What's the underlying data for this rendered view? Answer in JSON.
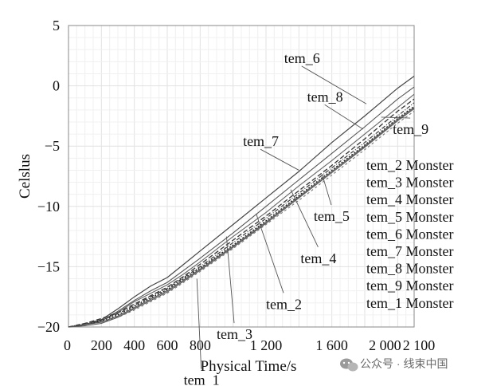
{
  "watermark": "公众号 · 线束中国",
  "chart_data": {
    "type": "line",
    "title": "",
    "xlabel": "Physical Time/s",
    "ylabel": "Celslus",
    "xlim": [
      0,
      2100
    ],
    "ylim": [
      -20,
      5
    ],
    "grid": true,
    "x_ticks": [
      0,
      200,
      400,
      600,
      800,
      1200,
      1600,
      2000,
      2100
    ],
    "x_tick_labels": [
      "0",
      "200",
      "400",
      "600",
      "800",
      "1 200",
      "1 600",
      "2 000",
      "2 100"
    ],
    "y_ticks": [
      5,
      0,
      -5,
      -10,
      -15,
      -20
    ],
    "y_tick_labels": [
      "5",
      "0",
      "−5",
      "−10",
      "−15",
      "−20"
    ],
    "legend": {
      "position": "right",
      "entries": [
        "tem_2 Monster",
        "tem_3 Monster",
        "tem_4 Monster",
        "tem_5 Monster",
        "tem_6 Monster",
        "tem_7 Monster",
        "tem_8 Monster",
        "tem_9 Monster",
        "tem_1 Monster"
      ]
    },
    "series": [
      {
        "name": "tem_6",
        "color": "#444444",
        "dash": "none",
        "width": 1.2,
        "x": [
          0,
          100,
          200,
          300,
          400,
          500,
          600,
          700,
          800,
          1000,
          1200,
          1400,
          1600,
          1800,
          2000,
          2100
        ],
        "y": [
          -20,
          -19.8,
          -19.4,
          -18.5,
          -17.5,
          -16.6,
          -15.9,
          -14.8,
          -13.7,
          -11.5,
          -9.3,
          -7.1,
          -4.7,
          -2.5,
          -0.2,
          0.8
        ]
      },
      {
        "name": "tem_8",
        "color": "#555555",
        "dash": "none",
        "width": 1.1,
        "x": [
          0,
          100,
          200,
          300,
          400,
          500,
          600,
          700,
          800,
          1000,
          1200,
          1400,
          1600,
          1800,
          2000,
          2100
        ],
        "y": [
          -20,
          -19.8,
          -19.5,
          -18.7,
          -17.8,
          -17,
          -16.3,
          -15.3,
          -14.3,
          -12.2,
          -10,
          -7.8,
          -5.6,
          -3.4,
          -1.1,
          -0.1
        ]
      },
      {
        "name": "tem_7",
        "color": "#666666",
        "dash": "none",
        "width": 1.1,
        "x": [
          0,
          100,
          200,
          300,
          400,
          500,
          600,
          700,
          800,
          1000,
          1200,
          1400,
          1600,
          1800,
          2000,
          2100
        ],
        "y": [
          -20,
          -19.8,
          -19.5,
          -18.8,
          -17.9,
          -17.2,
          -16.5,
          -15.6,
          -14.6,
          -12.5,
          -10.5,
          -8.3,
          -6.2,
          -4,
          -1.8,
          -0.7
        ]
      },
      {
        "name": "tem_5",
        "color": "#333333",
        "dash": "6 3",
        "width": 1.3,
        "x": [
          0,
          100,
          200,
          300,
          400,
          500,
          600,
          700,
          800,
          1000,
          1200,
          1400,
          1600,
          1800,
          2000,
          2100
        ],
        "y": [
          -20,
          -19.7,
          -19.3,
          -18.8,
          -18.1,
          -17.4,
          -16.7,
          -15.8,
          -14.8,
          -12.8,
          -10.8,
          -8.7,
          -6.6,
          -4.4,
          -2.1,
          -1.1
        ]
      },
      {
        "name": "tem_4",
        "color": "#222222",
        "dash": "2 2",
        "width": 1.3,
        "x": [
          0,
          100,
          200,
          300,
          400,
          500,
          600,
          700,
          800,
          1000,
          1200,
          1400,
          1600,
          1800,
          2000,
          2100
        ],
        "y": [
          -20,
          -19.8,
          -19.5,
          -19,
          -18.3,
          -17.6,
          -16.9,
          -16,
          -15.1,
          -13.2,
          -11.2,
          -9.1,
          -7,
          -4.9,
          -2.7,
          -1.7
        ]
      },
      {
        "name": "tem_2",
        "color": "#777777",
        "dash": "3 3",
        "width": 1.1,
        "x": [
          0,
          100,
          200,
          300,
          400,
          500,
          600,
          700,
          800,
          1000,
          1200,
          1400,
          1600,
          1800,
          2000,
          2100
        ],
        "y": [
          -20,
          -19.8,
          -19.6,
          -19.2,
          -18.6,
          -17.9,
          -17.2,
          -16.3,
          -15.4,
          -13.5,
          -11.5,
          -9.5,
          -7.4,
          -5.3,
          -3.1,
          -2.1
        ]
      },
      {
        "name": "tem_3",
        "color": "#4a4a4a",
        "dash": "none",
        "width": 1.0,
        "x": [
          0,
          100,
          200,
          300,
          400,
          500,
          600,
          700,
          800,
          1000,
          1200,
          1400,
          1600,
          1800,
          2000,
          2100
        ],
        "y": [
          -20,
          -19.8,
          -19.6,
          -19.1,
          -18.4,
          -17.7,
          -17,
          -16.1,
          -15.2,
          -13.3,
          -11.3,
          -9.2,
          -7.1,
          -5,
          -2.8,
          -1.8
        ]
      },
      {
        "name": "tem_9",
        "color": "#3a3a3a",
        "dash": "5 2 1 2",
        "width": 1.2,
        "x": [
          0,
          100,
          200,
          300,
          400,
          500,
          600,
          700,
          800,
          1000,
          1200,
          1400,
          1600,
          1800,
          2000,
          2100
        ],
        "y": [
          -20,
          -19.7,
          -19.4,
          -18.9,
          -18.2,
          -17.5,
          -16.8,
          -15.9,
          -15,
          -13,
          -11,
          -8.9,
          -6.8,
          -4.7,
          -2.5,
          -1.4
        ]
      },
      {
        "name": "tem_1",
        "color": "#555555",
        "dash": "none",
        "width": 1.1,
        "x": [
          0,
          100,
          200,
          300,
          400,
          500,
          600,
          700,
          800,
          1000,
          1200,
          1400,
          1600,
          1800,
          2000,
          2100
        ],
        "y": [
          -20,
          -19.9,
          -19.7,
          -19.2,
          -18.5,
          -17.8,
          -17.1,
          -16.2,
          -15.3,
          -13.4,
          -11.4,
          -9.3,
          -7.2,
          -5.1,
          -2.9,
          -1.9
        ]
      }
    ],
    "annotations": [
      {
        "text": "tem_6",
        "x": 1310,
        "y": 1.9,
        "px": 1810,
        "py": -1.5
      },
      {
        "text": "tem_8",
        "x": 1450,
        "y": -1.3,
        "px": 1790,
        "py": -3.6
      },
      {
        "text": "tem_9",
        "x": 1970,
        "y": -4.0,
        "px": 1900,
        "py": -2.6
      },
      {
        "text": "tem_7",
        "x": 1060,
        "y": -5.0,
        "px": 1400,
        "py": -7.0
      },
      {
        "text": "tem_5",
        "x": 1490,
        "y": -11.2,
        "px": 1540,
        "py": -7.3
      },
      {
        "text": "tem_4",
        "x": 1410,
        "y": -14.7,
        "px": 1350,
        "py": -8.6
      },
      {
        "text": "tem_2",
        "x": 1200,
        "y": -18.5,
        "px": 1140,
        "py": -10.6
      },
      {
        "text": "tem_3",
        "x": 900,
        "y": -21.0,
        "px": 960,
        "py": -12.5
      },
      {
        "text": "tem_1",
        "x": 700,
        "y": -24.8,
        "px": 780,
        "py": -16.0
      }
    ]
  }
}
